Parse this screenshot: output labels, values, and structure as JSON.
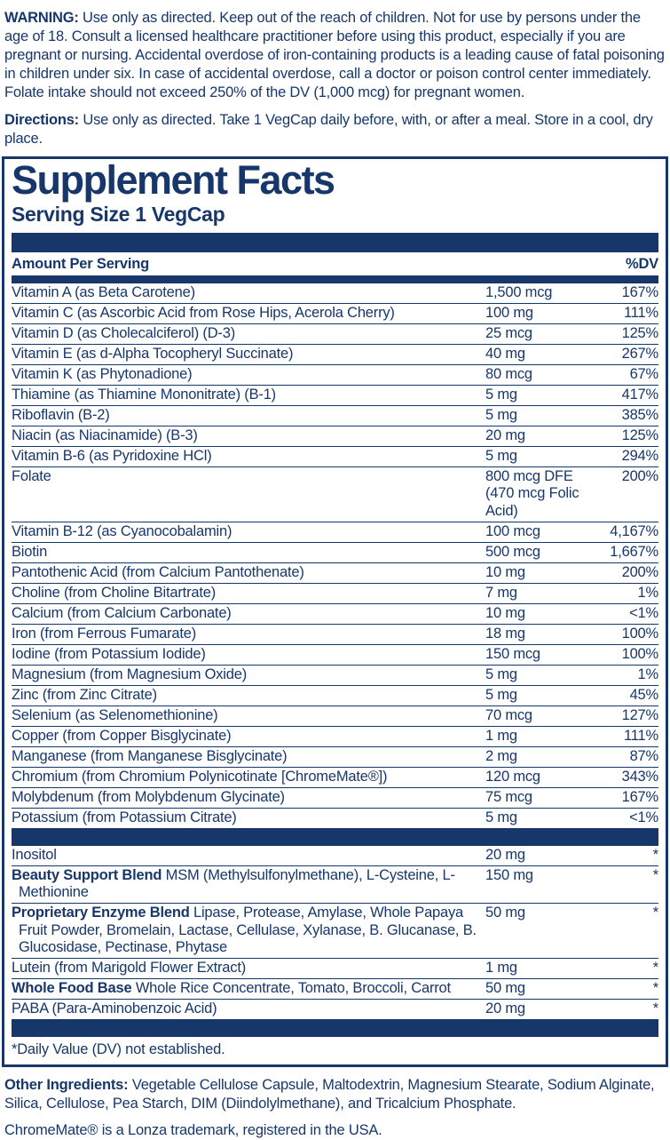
{
  "colors": {
    "navy": "#17376a",
    "background": "#ffffff"
  },
  "warning": {
    "label": "WARNING:",
    "text": "Use only as directed.  Keep out of the reach of children. Not for use by persons under the age of 18.  Consult a licensed healthcare practitioner before using this product, especially if you are pregnant or nursing.  Accidental overdose of iron-containing products is a leading cause of fatal poisoning in children under six.  In case of accidental overdose, call a doctor or poison control center immediately. Folate intake should not exceed 250% of the DV (1,000 mcg) for pregnant women."
  },
  "directions": {
    "label": "Directions:",
    "text": "Use only as directed. Take 1 VegCap daily before, with, or after a meal. Store in a cool, dry place."
  },
  "panel": {
    "title": "Supplement Facts",
    "serving_size": "Serving Size 1 VegCap",
    "amount_header": "Amount Per Serving",
    "dv_header": "%DV",
    "footnote": "*Daily Value (DV) not established.",
    "main_rows": [
      {
        "label": "Vitamin A (as Beta Carotene)",
        "amount": "1,500 mcg",
        "dv": "167%"
      },
      {
        "label": "Vitamin C (as Ascorbic Acid from Rose Hips, Acerola Cherry)",
        "amount": "100 mg",
        "dv": "111%"
      },
      {
        "label": "Vitamin D (as Cholecalciferol) (D-3)",
        "amount": "25 mcg",
        "dv": "125%"
      },
      {
        "label": "Vitamin E (as d-Alpha Tocopheryl Succinate)",
        "amount": "40 mg",
        "dv": "267%"
      },
      {
        "label": "Vitamin K (as Phytonadione)",
        "amount": "80 mcg",
        "dv": "67%"
      },
      {
        "label": "Thiamine (as Thiamine Mononitrate) (B-1)",
        "amount": "5 mg",
        "dv": "417%"
      },
      {
        "label": "Riboflavin (B-2)",
        "amount": "5 mg",
        "dv": "385%"
      },
      {
        "label": "Niacin (as Niacinamide) (B-3)",
        "amount": "20 mg",
        "dv": "125%"
      },
      {
        "label": "Vitamin B-6 (as Pyridoxine HCl)",
        "amount": "5 mg",
        "dv": "294%"
      },
      {
        "label": "Folate",
        "amount": "800 mcg DFE",
        "amount_line2": "(470 mcg Folic Acid)",
        "dv": "200%"
      },
      {
        "label": "Vitamin B-12 (as Cyanocobalamin)",
        "amount": "100 mcg",
        "dv": "4,167%"
      },
      {
        "label": "Biotin",
        "amount": "500 mcg",
        "dv": "1,667%"
      },
      {
        "label": "Pantothenic Acid (from Calcium Pantothenate)",
        "amount": "10 mg",
        "dv": "200%"
      },
      {
        "label": "Choline (from Choline Bitartrate)",
        "amount": "7 mg",
        "dv": "1%"
      },
      {
        "label": "Calcium (from Calcium Carbonate)",
        "amount": "10 mg",
        "dv": "<1%"
      },
      {
        "label": "Iron (from Ferrous Fumarate)",
        "amount": "18 mg",
        "dv": "100%"
      },
      {
        "label": "Iodine (from Potassium Iodide)",
        "amount": "150 mcg",
        "dv": "100%"
      },
      {
        "label": "Magnesium (from Magnesium Oxide)",
        "amount": "5 mg",
        "dv": "1%"
      },
      {
        "label": "Zinc (from Zinc Citrate)",
        "amount": "5 mg",
        "dv": "45%"
      },
      {
        "label": "Selenium (as Selenomethionine)",
        "amount": "70 mcg",
        "dv": "127%"
      },
      {
        "label": "Copper (from Copper Bisglycinate)",
        "amount": "1 mg",
        "dv": "111%"
      },
      {
        "label": "Manganese (from Manganese Bisglycinate)",
        "amount": "2 mg",
        "dv": "87%"
      },
      {
        "label": "Chromium (from Chromium Polynicotinate [ChromeMate®])",
        "amount": "120 mcg",
        "dv": "343%"
      },
      {
        "label": "Molybdenum (from Molybdenum Glycinate)",
        "amount": "75 mcg",
        "dv": "167%"
      },
      {
        "label": "Potassium (from Potassium Citrate)",
        "amount": "5 mg",
        "dv": "<1%"
      }
    ],
    "other_rows": [
      {
        "label": "Inositol",
        "amount": "20 mg",
        "dv": "*"
      },
      {
        "label_bold": "Beauty Support Blend",
        "label": "MSM (Methylsulfonylmethane), L-Cysteine, L-Methionine",
        "amount": "150 mg",
        "dv": "*"
      },
      {
        "label_bold": "Proprietary Enzyme Blend",
        "label": "Lipase, Protease, Amylase, Whole Papaya Fruit Powder, Bromelain, Lactase, Cellulase, Xylanase, B. Glucanase, B. Glucosidase, Pectinase, Phytase",
        "amount": "50 mg",
        "dv": "*"
      },
      {
        "label": "Lutein (from Marigold Flower Extract)",
        "amount": "1 mg",
        "dv": "*"
      },
      {
        "label_bold": "Whole Food Base",
        "label": "Whole Rice Concentrate, Tomato, Broccoli, Carrot",
        "amount": "50 mg",
        "dv": "*"
      },
      {
        "label": "PABA (Para-Aminobenzoic Acid)",
        "amount": "20 mg",
        "dv": "*"
      }
    ]
  },
  "footer": {
    "other_ingredients_label": "Other Ingredients:",
    "other_ingredients_text": "Vegetable Cellulose Capsule, Maltodextrin, Magnesium Stearate, Sodium Alginate, Silica, Cellulose, Pea Starch, DIM (Diindolylmethane), and Tricalcium Phosphate.",
    "trademark": "ChromeMate® is a Lonza trademark, registered in the USA."
  }
}
